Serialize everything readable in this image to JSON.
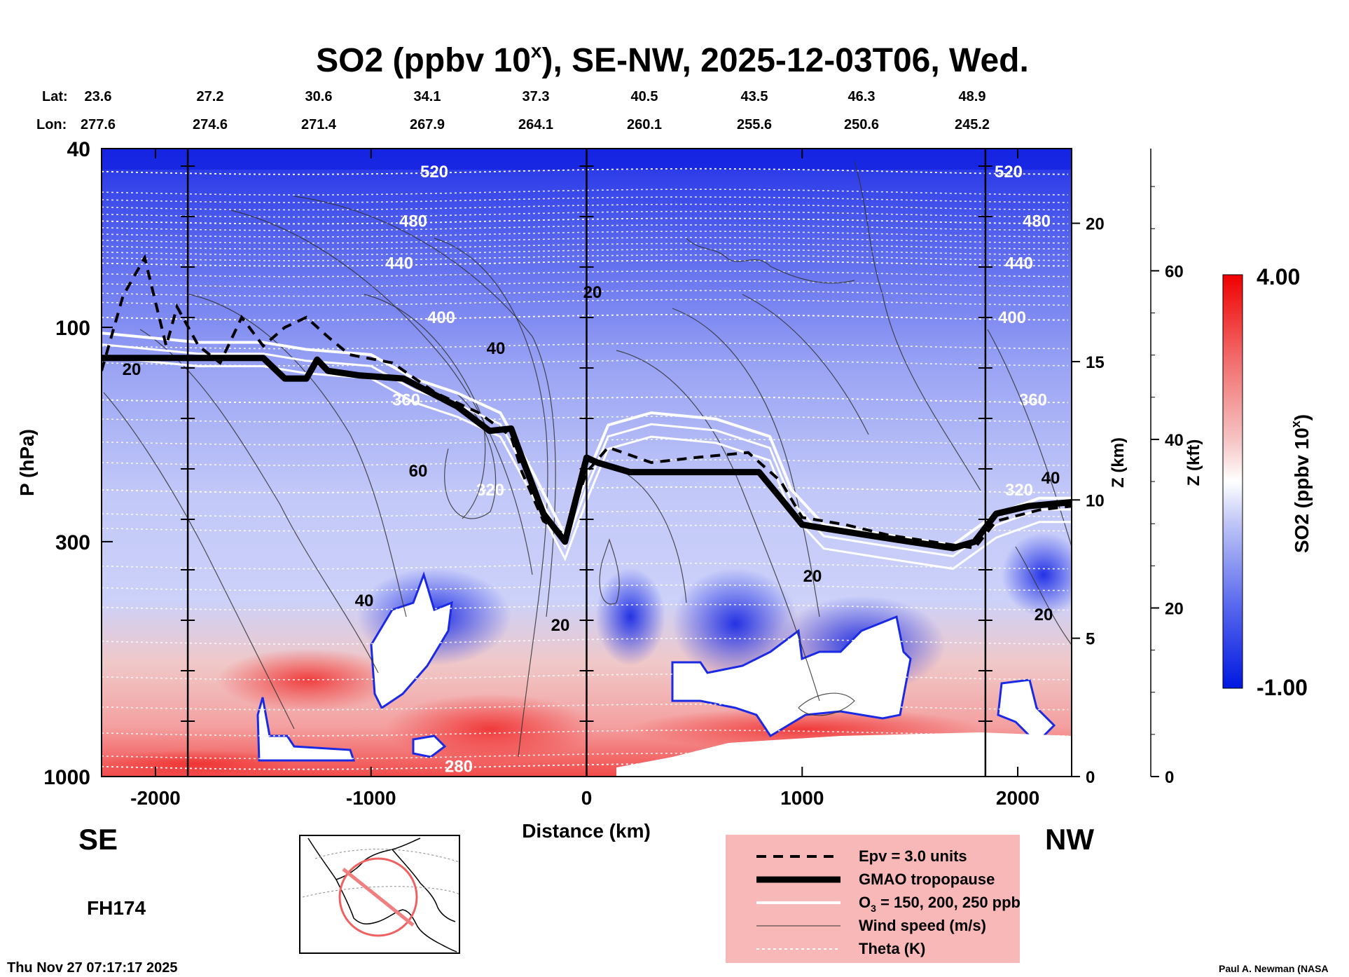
{
  "chart_data": {
    "type": "heatmap",
    "title_main": "SO2 (ppbv 10",
    "title_sup": "x",
    "title_rest": "), SE-NW, 2025-12-03T06, Wed.",
    "lat_label": "Lat:",
    "lon_label": "Lon:",
    "lat_ticks": [
      "23.6",
      "27.2",
      "30.6",
      "34.1",
      "37.3",
      "40.5",
      "43.5",
      "46.3",
      "48.9"
    ],
    "lon_ticks": [
      "277.6",
      "274.6",
      "271.4",
      "267.9",
      "264.1",
      "260.1",
      "255.6",
      "250.6",
      "245.2"
    ],
    "xlabel": "Distance (km)",
    "ylabel": "P (hPa)",
    "xlim": [
      -2250,
      2250
    ],
    "x_ticks": [
      {
        "v": -2000,
        "label": "-2000"
      },
      {
        "v": -1000,
        "label": "-1000"
      },
      {
        "v": 0,
        "label": "0"
      },
      {
        "v": 1000,
        "label": "1000"
      },
      {
        "v": 2000,
        "label": "2000"
      }
    ],
    "ylim": [
      1000,
      40
    ],
    "y_ticks": [
      {
        "v": 40,
        "label": "40"
      },
      {
        "v": 100,
        "label": "100"
      },
      {
        "v": 300,
        "label": "300"
      },
      {
        "v": 1000,
        "label": "1000"
      }
    ],
    "z_km_label": "Z (km)",
    "z_km_ticks": [
      {
        "v": 0,
        "label": "0"
      },
      {
        "v": 5,
        "label": "5"
      },
      {
        "v": 10,
        "label": "10"
      },
      {
        "v": 15,
        "label": "15"
      },
      {
        "v": 20,
        "label": "20"
      }
    ],
    "z_kft_label": "Z (kft)",
    "z_kft_ticks": [
      {
        "v": 0,
        "label": "0"
      },
      {
        "v": 20,
        "label": "20"
      },
      {
        "v": 40,
        "label": "40"
      },
      {
        "v": 60,
        "label": "60"
      }
    ],
    "colorbar": {
      "label_main": "SO2 (ppbv 10",
      "label_sup": "x",
      "label_rest": ")",
      "max_label": "4.00",
      "min_label": "-1.00",
      "range": [
        -1.0,
        4.0
      ],
      "low_color": "#0018e0",
      "mid_color": "#ffffff",
      "high_color": "#f00000"
    },
    "vertical_lines_km": [
      -1850,
      0,
      1850
    ],
    "theta_levels": [
      {
        "value": "520",
        "p": 45
      },
      {
        "value": "480",
        "p": 58
      },
      {
        "value": "440",
        "p": 72
      },
      {
        "value": "400",
        "p": 95
      },
      {
        "value": "360",
        "p": 145
      },
      {
        "value": "320",
        "p": 230
      },
      {
        "value": "280",
        "p": 950
      }
    ],
    "wind_labels": [
      "20",
      "40",
      "60"
    ],
    "tropopause_p": [
      [
        -2250,
        117
      ],
      [
        -1500,
        117
      ],
      [
        -1400,
        130
      ],
      [
        -1300,
        130
      ],
      [
        -1250,
        118
      ],
      [
        -1200,
        125
      ],
      [
        -1050,
        128
      ],
      [
        -850,
        130
      ],
      [
        -600,
        150
      ],
      [
        -450,
        170
      ],
      [
        -350,
        168
      ],
      [
        -300,
        195
      ],
      [
        -200,
        260
      ],
      [
        -100,
        300
      ],
      [
        0,
        195
      ],
      [
        50,
        200
      ],
      [
        200,
        210
      ],
      [
        500,
        210
      ],
      [
        800,
        210
      ],
      [
        900,
        240
      ],
      [
        1000,
        275
      ],
      [
        1100,
        280
      ],
      [
        1300,
        290
      ],
      [
        1500,
        300
      ],
      [
        1700,
        310
      ],
      [
        1800,
        300
      ],
      [
        1900,
        260
      ],
      [
        2050,
        250
      ],
      [
        2250,
        245
      ]
    ],
    "epv_p": [
      [
        -2250,
        125
      ],
      [
        -2150,
        85
      ],
      [
        -2050,
        70
      ],
      [
        -1950,
        110
      ],
      [
        -1900,
        90
      ],
      [
        -1800,
        110
      ],
      [
        -1700,
        120
      ],
      [
        -1600,
        95
      ],
      [
        -1500,
        110
      ],
      [
        -1400,
        100
      ],
      [
        -1300,
        95
      ],
      [
        -1200,
        105
      ],
      [
        -1100,
        115
      ],
      [
        -900,
        120
      ],
      [
        -700,
        140
      ],
      [
        -500,
        155
      ],
      [
        -350,
        175
      ],
      [
        -300,
        210
      ],
      [
        -200,
        270
      ],
      [
        -100,
        290
      ],
      [
        0,
        210
      ],
      [
        100,
        185
      ],
      [
        300,
        200
      ],
      [
        500,
        195
      ],
      [
        750,
        190
      ],
      [
        900,
        220
      ],
      [
        1000,
        265
      ],
      [
        1200,
        275
      ],
      [
        1400,
        290
      ],
      [
        1600,
        300
      ],
      [
        1800,
        310
      ],
      [
        1900,
        270
      ],
      [
        2100,
        255
      ],
      [
        2250,
        250
      ]
    ],
    "ozone_p": [
      [
        -2250,
        103
      ],
      [
        -1800,
        108
      ],
      [
        -1500,
        108
      ],
      [
        -1300,
        112
      ],
      [
        -1000,
        115
      ],
      [
        -800,
        130
      ],
      [
        -600,
        140
      ],
      [
        -400,
        155
      ],
      [
        -250,
        210
      ],
      [
        -100,
        290
      ],
      [
        0,
        215
      ],
      [
        100,
        165
      ],
      [
        300,
        155
      ],
      [
        600,
        160
      ],
      [
        850,
        175
      ],
      [
        950,
        230
      ],
      [
        1100,
        275
      ],
      [
        1400,
        290
      ],
      [
        1700,
        305
      ],
      [
        1900,
        260
      ],
      [
        2100,
        240
      ],
      [
        2250,
        240
      ]
    ],
    "legend": [
      {
        "key": "epv",
        "text": "Epv = 3.0 units"
      },
      {
        "key": "trop",
        "text": "GMAO tropopause"
      },
      {
        "key": "ozone",
        "text": "O",
        "sub": "3",
        "rest": " = 150, 200, 250 ppb"
      },
      {
        "key": "wind",
        "text": "Wind speed (m/s)"
      },
      {
        "key": "theta",
        "text": "Theta (K)"
      }
    ],
    "se_label": "SE",
    "nw_label": "NW",
    "forecast_hour": "FH174",
    "timestamp": "Thu Nov 27 07:17:17 2025",
    "credit": "Paul A. Newman (NASA"
  }
}
